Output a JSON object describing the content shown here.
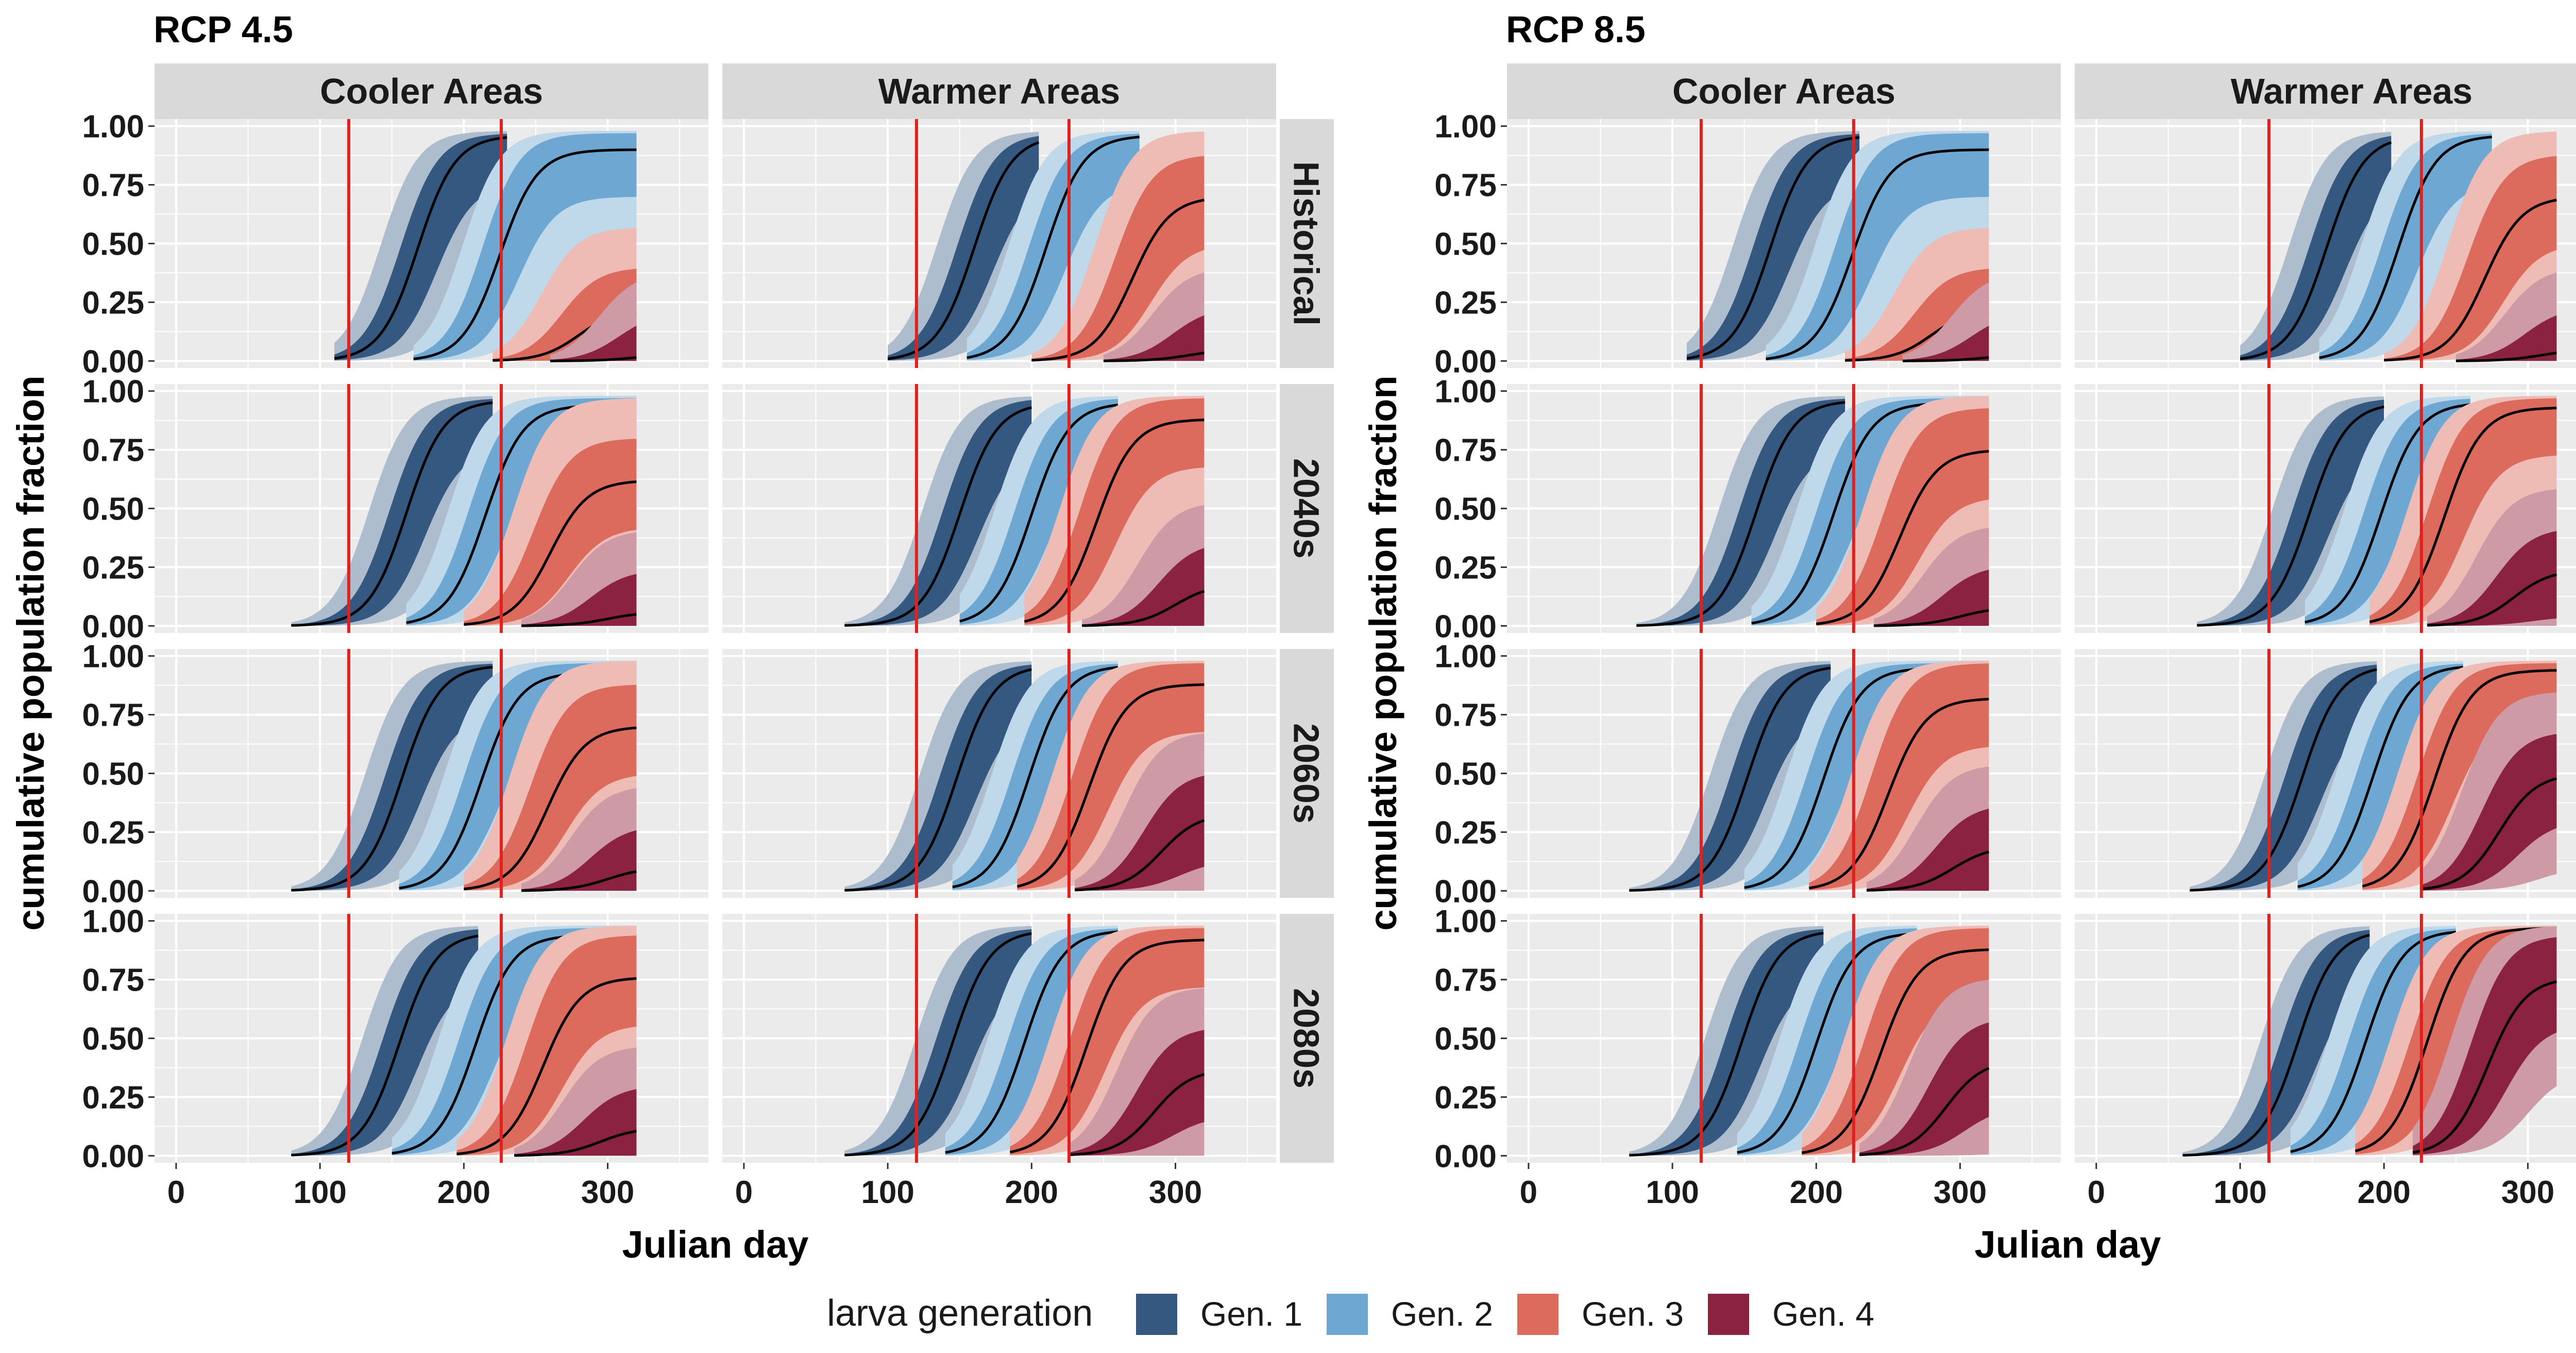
{
  "figure": {
    "legend_title": "larva generation",
    "generations": [
      "Gen. 1",
      "Gen. 2",
      "Gen. 3",
      "Gen. 4"
    ],
    "colors": {
      "Gen. 1": "#355881",
      "Gen. 2": "#6ea8d2",
      "Gen. 3": "#dc6b5d",
      "Gen. 4": "#8b2340",
      "reference_line": "#e0211e",
      "median_line": "#000000",
      "panel_bg": "#ebebeb",
      "strip_bg": "#d9d9d9",
      "grid": "#ffffff"
    }
  },
  "chart_data": [
    {
      "type": "area",
      "title": "RCP 4.5",
      "xlabel": "Julian day",
      "ylabel": "cumulative population fraction",
      "columns": [
        "Cooler Areas",
        "Warmer Areas"
      ],
      "rows": [
        "Historical",
        "2040s",
        "2060s",
        "2080s"
      ],
      "x_ticks": [
        0,
        100,
        200,
        300
      ],
      "y_ticks": [
        "0.00",
        "0.25",
        "0.50",
        "0.75",
        "1.00"
      ],
      "xlim": [
        -15,
        370
      ],
      "ylim": [
        -0.03,
        1.03
      ],
      "reference_lines_x": [
        120,
        226
      ],
      "grid": true,
      "series_note": "median line with 50% (dark) and 90% (light) bands per generation",
      "panels": [
        {
          "column": "Cooler Areas",
          "row": "Historical",
          "generations": [
            {
              "name": "Gen. 1",
              "start": 110,
              "mid": 168,
              "max": 0.96,
              "end": 230
            },
            {
              "name": "Gen. 2",
              "start": 165,
              "mid": 225,
              "max": 0.9,
              "end": 320
            },
            {
              "name": "Gen. 3",
              "start": 220,
              "mid": 280,
              "max": 0.22,
              "end": 320
            },
            {
              "name": "Gen. 4",
              "start": 260,
              "mid": 320,
              "max": 0.03,
              "end": 320
            }
          ]
        },
        {
          "column": "Warmer Areas",
          "row": "Historical",
          "generations": [
            {
              "name": "Gen. 1",
              "start": 100,
              "mid": 160,
              "max": 0.96,
              "end": 205
            },
            {
              "name": "Gen. 2",
              "start": 155,
              "mid": 210,
              "max": 0.96,
              "end": 275
            },
            {
              "name": "Gen. 3",
              "start": 200,
              "mid": 270,
              "max": 0.7,
              "end": 320
            },
            {
              "name": "Gen. 4",
              "start": 250,
              "mid": 310,
              "max": 0.05,
              "end": 320
            }
          ]
        },
        {
          "column": "Cooler Areas",
          "row": "2040s",
          "generations": [
            {
              "name": "Gen. 1",
              "start": 80,
              "mid": 160,
              "max": 0.96,
              "end": 220
            },
            {
              "name": "Gen. 2",
              "start": 160,
              "mid": 215,
              "max": 0.94,
              "end": 320
            },
            {
              "name": "Gen. 3",
              "start": 200,
              "mid": 260,
              "max": 0.62,
              "end": 320
            },
            {
              "name": "Gen. 4",
              "start": 240,
              "mid": 300,
              "max": 0.06,
              "end": 320
            }
          ]
        },
        {
          "column": "Warmer Areas",
          "row": "2040s",
          "generations": [
            {
              "name": "Gen. 1",
              "start": 70,
              "mid": 150,
              "max": 0.95,
              "end": 200
            },
            {
              "name": "Gen. 2",
              "start": 150,
              "mid": 200,
              "max": 0.95,
              "end": 260
            },
            {
              "name": "Gen. 3",
              "start": 195,
              "mid": 245,
              "max": 0.88,
              "end": 320
            },
            {
              "name": "Gen. 4",
              "start": 235,
              "mid": 300,
              "max": 0.18,
              "end": 320
            }
          ]
        },
        {
          "column": "Cooler Areas",
          "row": "2060s",
          "generations": [
            {
              "name": "Gen. 1",
              "start": 80,
              "mid": 157,
              "max": 0.96,
              "end": 220
            },
            {
              "name": "Gen. 2",
              "start": 155,
              "mid": 212,
              "max": 0.93,
              "end": 320
            },
            {
              "name": "Gen. 3",
              "start": 200,
              "mid": 258,
              "max": 0.7,
              "end": 320
            },
            {
              "name": "Gen. 4",
              "start": 240,
              "mid": 300,
              "max": 0.1,
              "end": 320
            }
          ]
        },
        {
          "column": "Warmer Areas",
          "row": "2060s",
          "generations": [
            {
              "name": "Gen. 1",
              "start": 70,
              "mid": 148,
              "max": 0.96,
              "end": 200
            },
            {
              "name": "Gen. 2",
              "start": 145,
              "mid": 198,
              "max": 0.96,
              "end": 260
            },
            {
              "name": "Gen. 3",
              "start": 190,
              "mid": 240,
              "max": 0.88,
              "end": 320
            },
            {
              "name": "Gen. 4",
              "start": 230,
              "mid": 290,
              "max": 0.33,
              "end": 320
            }
          ]
        },
        {
          "column": "Cooler Areas",
          "row": "2080s",
          "generations": [
            {
              "name": "Gen. 1",
              "start": 80,
              "mid": 155,
              "max": 0.95,
              "end": 210
            },
            {
              "name": "Gen. 2",
              "start": 150,
              "mid": 208,
              "max": 0.94,
              "end": 320
            },
            {
              "name": "Gen. 3",
              "start": 195,
              "mid": 255,
              "max": 0.76,
              "end": 320
            },
            {
              "name": "Gen. 4",
              "start": 235,
              "mid": 295,
              "max": 0.12,
              "end": 320
            }
          ]
        },
        {
          "column": "Warmer Areas",
          "row": "2080s",
          "generations": [
            {
              "name": "Gen. 1",
              "start": 70,
              "mid": 145,
              "max": 0.96,
              "end": 200
            },
            {
              "name": "Gen. 2",
              "start": 140,
              "mid": 195,
              "max": 0.96,
              "end": 260
            },
            {
              "name": "Gen. 3",
              "start": 185,
              "mid": 238,
              "max": 0.92,
              "end": 320
            },
            {
              "name": "Gen. 4",
              "start": 225,
              "mid": 285,
              "max": 0.37,
              "end": 320
            }
          ]
        }
      ]
    },
    {
      "type": "area",
      "title": "RCP 8.5",
      "xlabel": "Julian day",
      "ylabel": "cumulative population fraction",
      "columns": [
        "Cooler Areas",
        "Warmer Areas"
      ],
      "rows": [
        "Historical",
        "2040s",
        "2060s",
        "2080s"
      ],
      "x_ticks": [
        0,
        100,
        200,
        300
      ],
      "y_ticks": [
        "0.00",
        "0.25",
        "0.50",
        "0.75",
        "1.00"
      ],
      "xlim": [
        -15,
        370
      ],
      "ylim": [
        -0.03,
        1.03
      ],
      "reference_lines_x": [
        120,
        226
      ],
      "grid": true,
      "series_note": "median line with 50% (dark) and 90% (light) bands per generation",
      "panels": [
        {
          "column": "Cooler Areas",
          "row": "Historical",
          "generations": [
            {
              "name": "Gen. 1",
              "start": 110,
              "mid": 168,
              "max": 0.96,
              "end": 230
            },
            {
              "name": "Gen. 2",
              "start": 165,
              "mid": 225,
              "max": 0.9,
              "end": 320
            },
            {
              "name": "Gen. 3",
              "start": 220,
              "mid": 280,
              "max": 0.22,
              "end": 320
            },
            {
              "name": "Gen. 4",
              "start": 260,
              "mid": 320,
              "max": 0.03,
              "end": 320
            }
          ]
        },
        {
          "column": "Warmer Areas",
          "row": "Historical",
          "generations": [
            {
              "name": "Gen. 1",
              "start": 100,
              "mid": 160,
              "max": 0.96,
              "end": 205
            },
            {
              "name": "Gen. 2",
              "start": 155,
              "mid": 210,
              "max": 0.96,
              "end": 275
            },
            {
              "name": "Gen. 3",
              "start": 200,
              "mid": 270,
              "max": 0.7,
              "end": 320
            },
            {
              "name": "Gen. 4",
              "start": 250,
              "mid": 310,
              "max": 0.05,
              "end": 320
            }
          ]
        },
        {
          "column": "Cooler Areas",
          "row": "2040s",
          "generations": [
            {
              "name": "Gen. 1",
              "start": 75,
              "mid": 158,
              "max": 0.96,
              "end": 220
            },
            {
              "name": "Gen. 2",
              "start": 155,
              "mid": 212,
              "max": 0.95,
              "end": 320
            },
            {
              "name": "Gen. 3",
              "start": 200,
              "mid": 258,
              "max": 0.75,
              "end": 320
            },
            {
              "name": "Gen. 4",
              "start": 240,
              "mid": 300,
              "max": 0.08,
              "end": 320
            }
          ]
        },
        {
          "column": "Warmer Areas",
          "row": "2040s",
          "generations": [
            {
              "name": "Gen. 1",
              "start": 70,
              "mid": 148,
              "max": 0.95,
              "end": 200
            },
            {
              "name": "Gen. 2",
              "start": 145,
              "mid": 198,
              "max": 0.95,
              "end": 260
            },
            {
              "name": "Gen. 3",
              "start": 190,
              "mid": 242,
              "max": 0.93,
              "end": 320
            },
            {
              "name": "Gen. 4",
              "start": 230,
              "mid": 290,
              "max": 0.24,
              "end": 320
            }
          ]
        },
        {
          "column": "Cooler Areas",
          "row": "2060s",
          "generations": [
            {
              "name": "Gen. 1",
              "start": 70,
              "mid": 152,
              "max": 0.96,
              "end": 210
            },
            {
              "name": "Gen. 2",
              "start": 150,
              "mid": 205,
              "max": 0.95,
              "end": 320
            },
            {
              "name": "Gen. 3",
              "start": 195,
              "mid": 250,
              "max": 0.82,
              "end": 320
            },
            {
              "name": "Gen. 4",
              "start": 235,
              "mid": 295,
              "max": 0.19,
              "end": 320
            }
          ]
        },
        {
          "column": "Warmer Areas",
          "row": "2060s",
          "generations": [
            {
              "name": "Gen. 1",
              "start": 65,
              "mid": 143,
              "max": 0.96,
              "end": 195
            },
            {
              "name": "Gen. 2",
              "start": 140,
              "mid": 192,
              "max": 0.96,
              "end": 255
            },
            {
              "name": "Gen. 3",
              "start": 185,
              "mid": 235,
              "max": 0.94,
              "end": 320
            },
            {
              "name": "Gen. 4",
              "start": 225,
              "mid": 280,
              "max": 0.5,
              "end": 320
            }
          ]
        },
        {
          "column": "Cooler Areas",
          "row": "2080s",
          "generations": [
            {
              "name": "Gen. 1",
              "start": 70,
              "mid": 148,
              "max": 0.96,
              "end": 205
            },
            {
              "name": "Gen. 2",
              "start": 145,
              "mid": 200,
              "max": 0.95,
              "end": 270
            },
            {
              "name": "Gen. 3",
              "start": 190,
              "mid": 245,
              "max": 0.88,
              "end": 320
            },
            {
              "name": "Gen. 4",
              "start": 230,
              "mid": 290,
              "max": 0.41,
              "end": 320
            }
          ]
        },
        {
          "column": "Warmer Areas",
          "row": "2080s",
          "generations": [
            {
              "name": "Gen. 1",
              "start": 60,
              "mid": 140,
              "max": 0.96,
              "end": 190
            },
            {
              "name": "Gen. 2",
              "start": 135,
              "mid": 187,
              "max": 0.96,
              "end": 250
            },
            {
              "name": "Gen. 3",
              "start": 180,
              "mid": 230,
              "max": 0.97,
              "end": 320
            },
            {
              "name": "Gen. 4",
              "start": 220,
              "mid": 272,
              "max": 0.76,
              "end": 320
            }
          ]
        }
      ]
    }
  ]
}
